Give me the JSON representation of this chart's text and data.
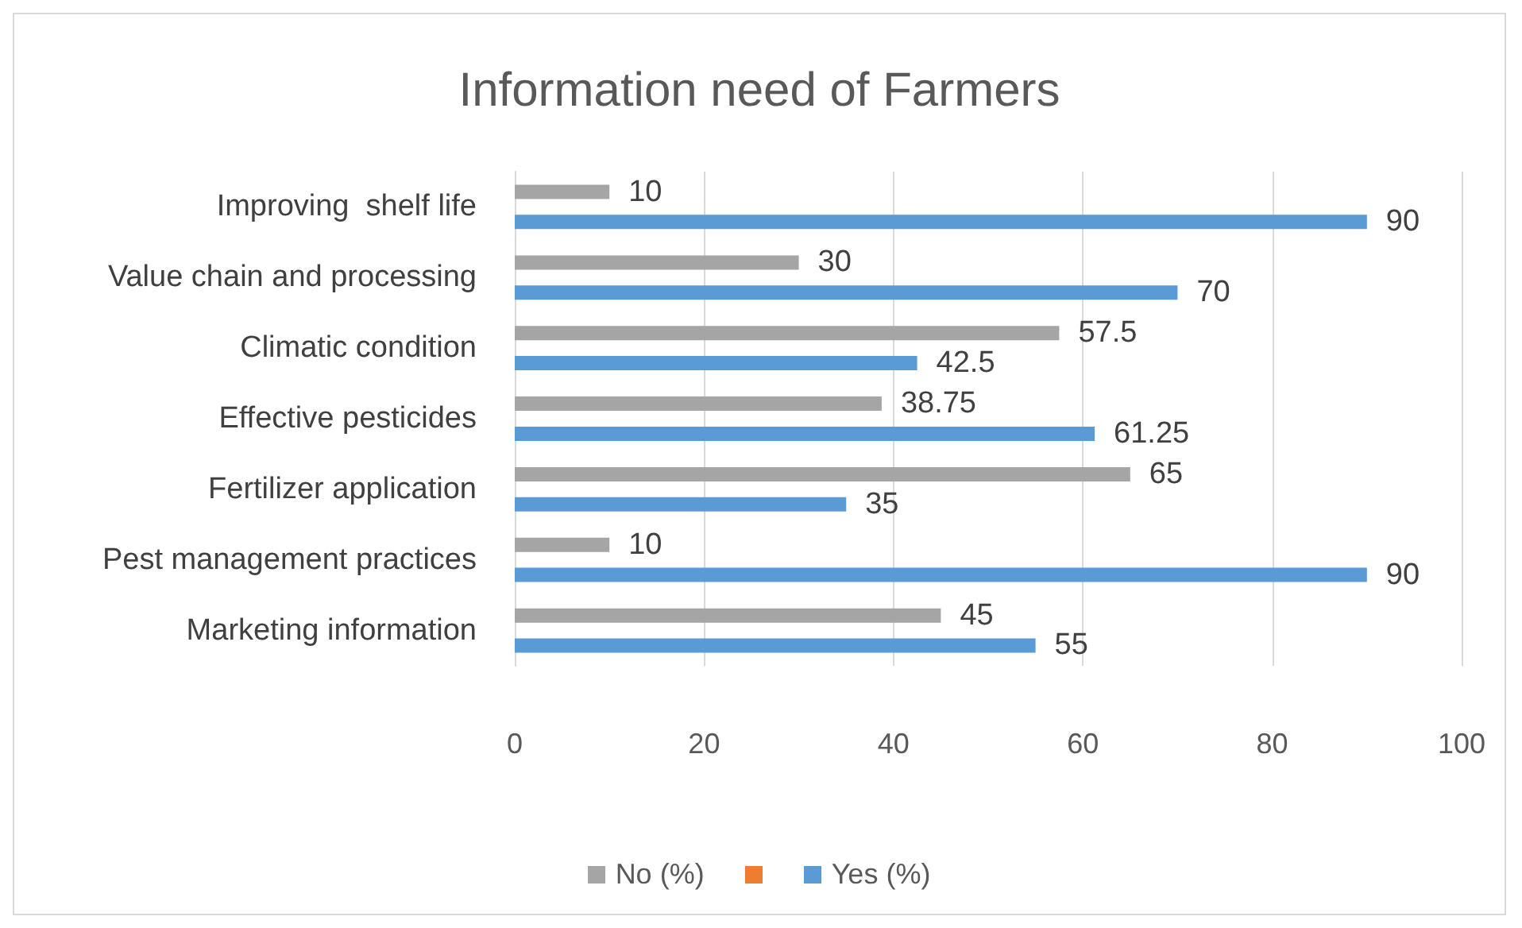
{
  "chart_data": {
    "type": "bar",
    "orientation": "horizontal",
    "title": "Information need of Farmers",
    "categories": [
      "Improving  shelf life",
      "Value chain and processing",
      "Climatic condition",
      "Effective pesticides",
      "Fertilizer application",
      "Pest management practices",
      "Marketing information"
    ],
    "series": [
      {
        "name": "No (%)",
        "color": "#a5a5a5",
        "values": [
          10,
          30,
          57.5,
          38.75,
          65,
          10,
          45
        ]
      },
      {
        "color": "#ed7d31",
        "values": [
          null,
          null,
          null,
          null,
          null,
          null,
          null
        ]
      },
      {
        "name": "Yes (%)",
        "color": "#5b9bd5",
        "values": [
          90,
          70,
          42.5,
          61.25,
          35,
          90,
          55
        ]
      }
    ],
    "xlim": [
      0,
      100
    ],
    "xticks": [
      0,
      20,
      40,
      60,
      80,
      100
    ],
    "grid": "x",
    "legend": "bottom",
    "data_labels": true
  }
}
